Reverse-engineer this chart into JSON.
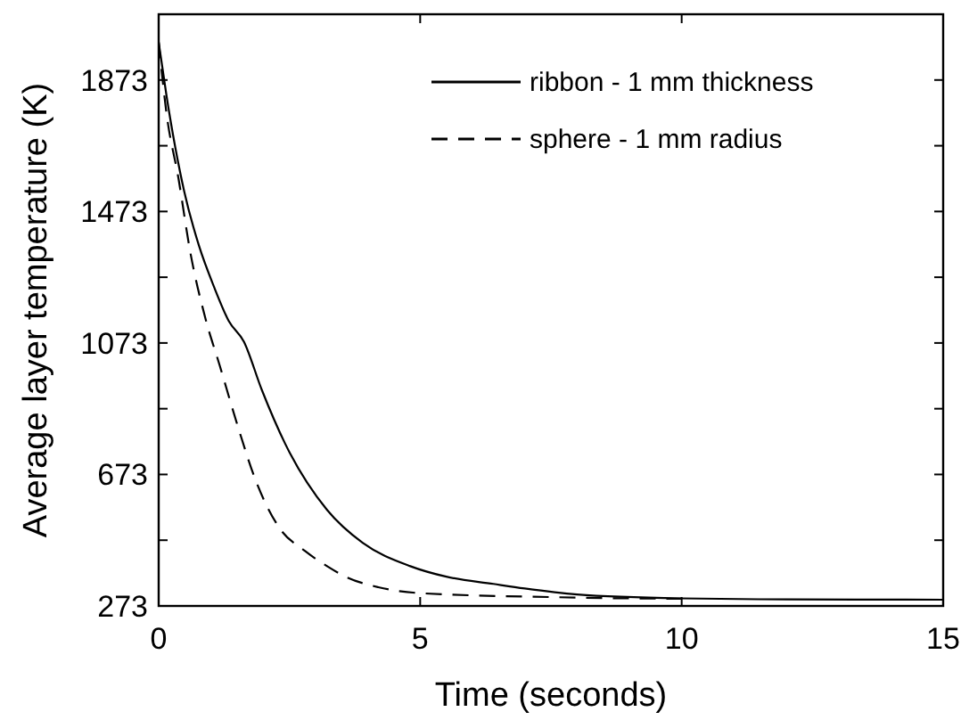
{
  "chart_data": {
    "type": "line",
    "xlabel": "Time (seconds)",
    "ylabel": "Average layer temperature (K)",
    "xlim": [
      0,
      15
    ],
    "xticks": [
      0,
      5,
      10,
      15
    ],
    "ylim": [
      273,
      2073
    ],
    "yticks": [
      273,
      {
        "value": 473,
        "label": null
      },
      673,
      {
        "value": 873,
        "label": null
      },
      1073,
      {
        "value": 1273,
        "label": null
      },
      1473,
      {
        "value": 1673,
        "label": null
      },
      1873,
      {
        "value": 2073,
        "label": null
      }
    ],
    "legend": "top right",
    "grid": false,
    "series": [
      {
        "name": "ribbon - 1 mm thickness",
        "color": "#000000",
        "line_style": "solid",
        "x": [
          0,
          0.15,
          0.49,
          0.77,
          1.06,
          1.34,
          1.63,
          1.97,
          2.42,
          3.22,
          3.9,
          4.81,
          5.5,
          6.4,
          7,
          8,
          10,
          12,
          15
        ],
        "values": [
          1988,
          1825,
          1533,
          1369,
          1243,
          1140,
          1077,
          931,
          766,
          565,
          465,
          394,
          362,
          340,
          326,
          308,
          296,
          293,
          292
        ]
      },
      {
        "name": "sphere - 1 mm radius",
        "color": "#000000",
        "line_style": "dashed",
        "x": [
          0,
          0.15,
          0.38,
          0.6,
          0.89,
          1.17,
          1.51,
          1.85,
          2.31,
          2.8,
          3.22,
          3.6,
          4.2,
          5,
          7.5,
          9,
          10
        ],
        "values": [
          1988,
          1771,
          1572,
          1353,
          1150,
          1003,
          821,
          657,
          510,
          440,
          394,
          360,
          330,
          312,
          300,
          296,
          295
        ]
      }
    ]
  }
}
